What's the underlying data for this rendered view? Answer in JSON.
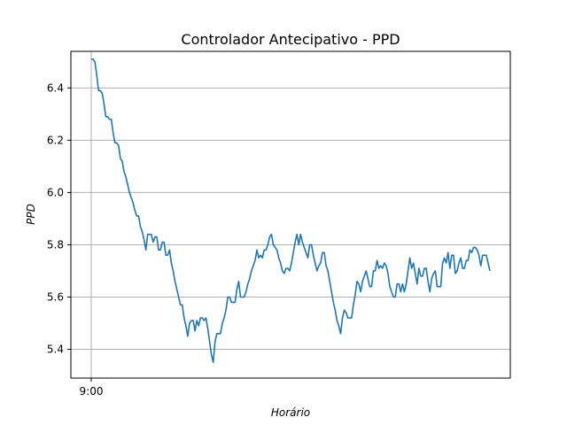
{
  "chart_data": {
    "type": "line",
    "title": "Controlador Antecipativo - PPD",
    "xlabel": "Horário",
    "ylabel": "PPD",
    "x_tick_labels": [
      "9:00"
    ],
    "y_ticks": [
      "5.4",
      "5.6",
      "5.8",
      "6.0",
      "6.2",
      "6.4"
    ],
    "ylim": [
      5.29,
      6.54
    ],
    "grid": "horizontal and at the 9:00 tick",
    "legend": "none",
    "line_color": "#1f77b4",
    "series": [
      {
        "x_step_minutes": 1,
        "values": [
          6.51,
          6.51,
          6.5,
          6.45,
          6.39,
          6.39,
          6.38,
          6.34,
          6.29,
          6.29,
          6.28,
          6.28,
          6.23,
          6.19,
          6.19,
          6.18,
          6.13,
          6.12,
          6.08,
          6.06,
          6.03,
          6.0,
          5.98,
          5.96,
          5.93,
          5.91,
          5.91,
          5.87,
          5.85,
          5.82,
          5.78,
          5.84,
          5.84,
          5.84,
          5.81,
          5.83,
          5.83,
          5.78,
          5.78,
          5.81,
          5.81,
          5.76,
          5.76,
          5.78,
          5.73,
          5.7,
          5.66,
          5.63,
          5.6,
          5.57,
          5.57,
          5.52,
          5.49,
          5.45,
          5.5,
          5.51,
          5.51,
          5.47,
          5.51,
          5.49,
          5.52,
          5.52,
          5.51,
          5.52,
          5.48,
          5.43,
          5.38,
          5.35,
          5.43,
          5.46,
          5.46,
          5.46,
          5.5,
          5.52,
          5.55,
          5.6,
          5.6,
          5.58,
          5.58,
          5.58,
          5.63,
          5.66,
          5.6,
          5.6,
          5.6,
          5.62,
          5.65,
          5.67,
          5.7,
          5.72,
          5.74,
          5.78,
          5.75,
          5.76,
          5.75,
          5.78,
          5.78,
          5.8,
          5.83,
          5.84,
          5.8,
          5.79,
          5.78,
          5.75,
          5.73,
          5.7,
          5.69,
          5.71,
          5.71,
          5.7,
          5.73,
          5.77,
          5.81,
          5.84,
          5.8,
          5.84,
          5.81,
          5.79,
          5.77,
          5.75,
          5.8,
          5.8,
          5.76,
          5.73,
          5.7,
          5.72,
          5.73,
          5.77,
          5.77,
          5.72,
          5.7,
          5.66,
          5.62,
          5.58,
          5.55,
          5.51,
          5.49,
          5.46,
          5.52,
          5.55,
          5.54,
          5.52,
          5.52,
          5.52,
          5.57,
          5.61,
          5.66,
          5.65,
          5.62,
          5.66,
          5.68,
          5.7,
          5.67,
          5.64,
          5.64,
          5.7,
          5.7,
          5.74,
          5.71,
          5.72,
          5.71,
          5.73,
          5.72,
          5.69,
          5.64,
          5.62,
          5.6,
          5.6,
          5.65,
          5.65,
          5.62,
          5.65,
          5.62,
          5.65,
          5.7,
          5.75,
          5.71,
          5.73,
          5.69,
          5.65,
          5.71,
          5.68,
          5.68,
          5.71,
          5.71,
          5.66,
          5.62,
          5.67,
          5.69,
          5.7,
          5.64,
          5.64,
          5.64,
          5.73,
          5.75,
          5.73,
          5.77,
          5.71,
          5.76,
          5.76,
          5.69,
          5.7,
          5.73,
          5.75,
          5.71,
          5.71,
          5.74,
          5.74,
          5.78,
          5.77,
          5.79,
          5.79,
          5.78,
          5.76,
          5.72,
          5.76,
          5.76,
          5.76,
          5.73,
          5.7
        ]
      }
    ]
  }
}
